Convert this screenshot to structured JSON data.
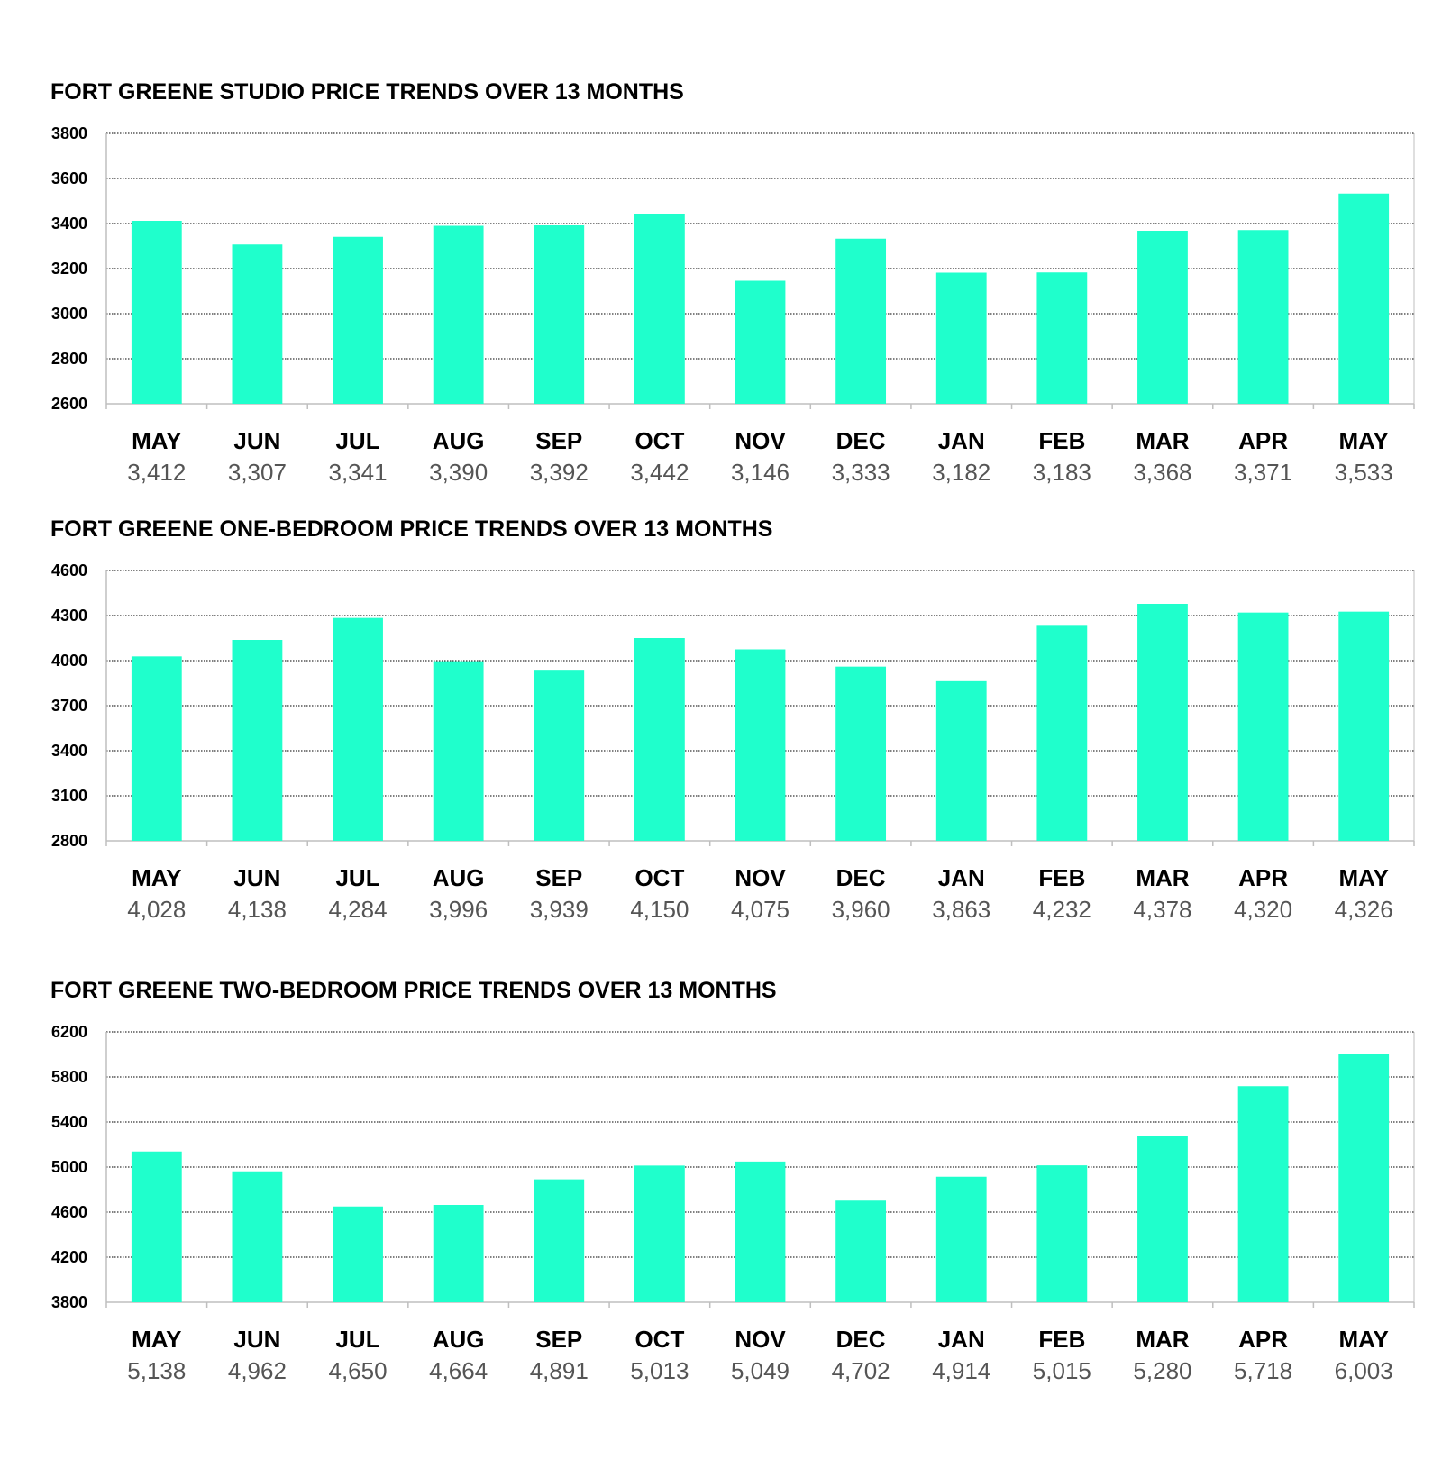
{
  "colors": {
    "bar": "#1FFFCC",
    "grid": "#000000",
    "axis": "#bfbfbf",
    "value_text": "#555555"
  },
  "chart_data": [
    {
      "type": "bar",
      "title": "FORT GREENE STUDIO PRICE TRENDS OVER 13 MONTHS",
      "categories": [
        "MAY",
        "JUN",
        "JUL",
        "AUG",
        "SEP",
        "OCT",
        "NOV",
        "DEC",
        "JAN",
        "FEB",
        "MAR",
        "APR",
        "MAY"
      ],
      "values": [
        3412,
        3307,
        3341,
        3390,
        3392,
        3442,
        3146,
        3333,
        3182,
        3183,
        3368,
        3371,
        3533
      ],
      "value_labels": [
        "3,412",
        "3,307",
        "3,341",
        "3,390",
        "3,392",
        "3,442",
        "3,146",
        "3,333",
        "3,182",
        "3,183",
        "3,368",
        "3,371",
        "3,533"
      ],
      "yticks": [
        "2600",
        "2800",
        "3000",
        "3200",
        "3400",
        "3600",
        "3800"
      ],
      "ylim": [
        2600,
        3800
      ],
      "grid": true,
      "legend": "none"
    },
    {
      "type": "bar",
      "title": "FORT GREENE ONE-BEDROOM PRICE TRENDS OVER 13 MONTHS",
      "categories": [
        "MAY",
        "JUN",
        "JUL",
        "AUG",
        "SEP",
        "OCT",
        "NOV",
        "DEC",
        "JAN",
        "FEB",
        "MAR",
        "APR",
        "MAY"
      ],
      "values": [
        4028,
        4138,
        4284,
        3996,
        3939,
        4150,
        4075,
        3960,
        3863,
        4232,
        4378,
        4320,
        4326
      ],
      "value_labels": [
        "4,028",
        "4,138",
        "4,284",
        "3,996",
        "3,939",
        "4,150",
        "4,075",
        "3,960",
        "3,863",
        "4,232",
        "4,378",
        "4,320",
        "4,326"
      ],
      "yticks": [
        "2800",
        "3100",
        "3400",
        "3700",
        "4000",
        "4300",
        "4600"
      ],
      "ylim": [
        2800,
        4600
      ],
      "grid": true,
      "legend": "none"
    },
    {
      "type": "bar",
      "title": "FORT GREENE TWO-BEDROOM PRICE TRENDS OVER 13 MONTHS",
      "categories": [
        "MAY",
        "JUN",
        "JUL",
        "AUG",
        "SEP",
        "OCT",
        "NOV",
        "DEC",
        "JAN",
        "FEB",
        "MAR",
        "APR",
        "MAY"
      ],
      "values": [
        5138,
        4962,
        4650,
        4664,
        4891,
        5013,
        5049,
        4702,
        4914,
        5015,
        5280,
        5718,
        6003
      ],
      "value_labels": [
        "5,138",
        "4,962",
        "4,650",
        "4,664",
        "4,891",
        "5,013",
        "5,049",
        "4,702",
        "4,914",
        "5,015",
        "5,280",
        "5,718",
        "6,003"
      ],
      "yticks": [
        "3800",
        "4200",
        "4600",
        "5000",
        "5400",
        "5800",
        "6200"
      ],
      "ylim": [
        3800,
        6200
      ],
      "grid": true,
      "legend": "none"
    }
  ]
}
